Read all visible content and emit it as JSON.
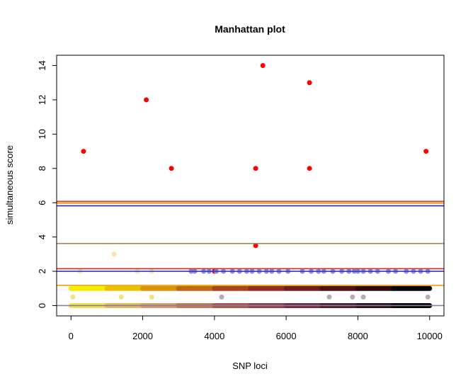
{
  "chart_data": {
    "type": "scatter",
    "title": "Manhattan plot",
    "xlabel": "SNP loci",
    "ylabel": "simultaneous score",
    "xlim": [
      -400,
      10400
    ],
    "ylim": [
      -0.6,
      14.6
    ],
    "x_ticks": [
      0,
      2000,
      4000,
      6000,
      8000,
      10000
    ],
    "x_tick_labels": [
      "0",
      "2000",
      "4000",
      "6000",
      "8000",
      "10000"
    ],
    "y_ticks": [
      0,
      2,
      4,
      6,
      8,
      10,
      12,
      14
    ],
    "y_tick_labels": [
      "0",
      "2",
      "4",
      "6",
      "8",
      "10",
      "12",
      "14"
    ],
    "grid": false,
    "legend": "none",
    "bands": [
      {
        "y": 1,
        "segments": [
          {
            "x0": 0,
            "x1": 1000,
            "color": "#f2ee00"
          },
          {
            "x0": 1000,
            "x1": 2000,
            "color": "#e6c400"
          },
          {
            "x0": 2000,
            "x1": 3000,
            "color": "#d4960a"
          },
          {
            "x0": 3000,
            "x1": 4000,
            "color": "#bd6a14"
          },
          {
            "x0": 4000,
            "x1": 5000,
            "color": "#a84420"
          },
          {
            "x0": 5000,
            "x1": 6000,
            "color": "#922c26"
          },
          {
            "x0": 6000,
            "x1": 7000,
            "color": "#6e1e1e"
          },
          {
            "x0": 7000,
            "x1": 8000,
            "color": "#4e1414"
          },
          {
            "x0": 8000,
            "x1": 9000,
            "color": "#2e0a0a"
          },
          {
            "x0": 9000,
            "x1": 10000,
            "color": "#050505"
          }
        ]
      },
      {
        "y": 0,
        "segments": [
          {
            "x0": 0,
            "x1": 1000,
            "color": "#efe24e"
          },
          {
            "x0": 1000,
            "x1": 2000,
            "color": "#e1bc5a"
          },
          {
            "x0": 2000,
            "x1": 3000,
            "color": "#d29e63"
          },
          {
            "x0": 3000,
            "x1": 4000,
            "color": "#bf7a52"
          },
          {
            "x0": 4000,
            "x1": 5000,
            "color": "#a8584e"
          },
          {
            "x0": 5000,
            "x1": 6000,
            "color": "#8e4048"
          },
          {
            "x0": 6000,
            "x1": 7000,
            "color": "#6c2e3e"
          },
          {
            "x0": 7000,
            "x1": 8000,
            "color": "#4a1e2e"
          },
          {
            "x0": 8000,
            "x1": 9000,
            "color": "#241018"
          },
          {
            "x0": 9000,
            "x1": 10000,
            "color": "#050505"
          }
        ]
      }
    ],
    "hlines": [
      {
        "y": 6.08,
        "color": "#e03a10"
      },
      {
        "y": 5.98,
        "color": "#f08000"
      },
      {
        "y": 5.82,
        "color": "#1a2fc8"
      },
      {
        "y": 3.62,
        "color": "#a08a56"
      },
      {
        "y": 2.15,
        "color": "#e02020"
      },
      {
        "y": 2.0,
        "color": "#2a3ad0"
      },
      {
        "y": 1.18,
        "color": "#f0a000"
      },
      {
        "y": 0.0,
        "color": "#8a7aa8"
      }
    ],
    "series": [
      {
        "color": "#ff0000",
        "x": [
          350,
          2100,
          2800,
          4000,
          5150,
          5150,
          5350,
          6650,
          6650,
          9900
        ],
        "y": [
          9,
          12,
          8,
          2,
          8,
          3.5,
          14,
          13,
          8,
          9
        ]
      },
      {
        "color": "#8c8cdc",
        "x": [
          3350,
          3450,
          3700,
          3850,
          4050,
          4250,
          4500,
          4700,
          4900,
          5050,
          5250,
          5450,
          5600,
          5800,
          6050,
          6450,
          6700,
          6900,
          7050,
          7300,
          7550,
          7750,
          7900,
          8000,
          8150,
          8350,
          8550,
          8850,
          9050,
          9350,
          9550,
          9750,
          9950
        ],
        "y": [
          2,
          2,
          2,
          2,
          2,
          2,
          2,
          2,
          2,
          2,
          2,
          2,
          2,
          2,
          2,
          2,
          2,
          2,
          2,
          2,
          2,
          2,
          2,
          2,
          2,
          2,
          2,
          2,
          2,
          2,
          2,
          2,
          2
        ]
      },
      {
        "color": "#f8e4a8",
        "x": [
          250,
          1200,
          1850,
          2250
        ],
        "y": [
          2,
          3,
          2,
          2
        ]
      },
      {
        "color": "#f6e27c",
        "x": [
          50,
          1400,
          2250
        ],
        "y": [
          0.5,
          0.5,
          0.5
        ]
      },
      {
        "color": "#b8a8b8",
        "x": [
          4200,
          7200,
          7850,
          8150,
          9950
        ],
        "y": [
          0.5,
          0.5,
          0.5,
          0.5,
          0.5
        ]
      }
    ]
  }
}
